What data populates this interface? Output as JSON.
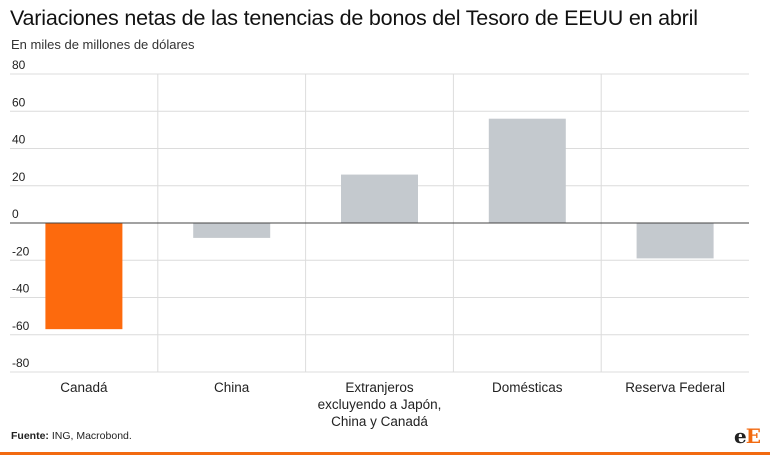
{
  "chart_data": {
    "type": "bar",
    "title": "Variaciones netas de las tenencias de bonos del Tesoro de EEUU en abril",
    "subtitle": "En miles de millones de dólares",
    "categories": [
      [
        "Canadá"
      ],
      [
        "China"
      ],
      [
        "Extranjeros",
        "excluyendo a Japón,",
        "China y Canadá"
      ],
      [
        "Domésticas"
      ],
      [
        "Reserva Federal"
      ]
    ],
    "values": [
      -57,
      -8,
      26,
      56,
      -19
    ],
    "highlight_index": 0,
    "ylim": [
      -80,
      80
    ],
    "yticks": [
      "80",
      "60",
      "40",
      "20",
      "0",
      "-20",
      "-40",
      "-60",
      "-80"
    ],
    "grid": true,
    "colors": {
      "bar": "#c4c9ce",
      "highlight": "#fd6a0d",
      "grid": "#dcdcdc",
      "zero": "#444444"
    }
  },
  "footer": {
    "source_label": "Fuente:",
    "source_text": " ING, Macrobond.",
    "logo_lower": "e",
    "logo_upper": "E"
  }
}
